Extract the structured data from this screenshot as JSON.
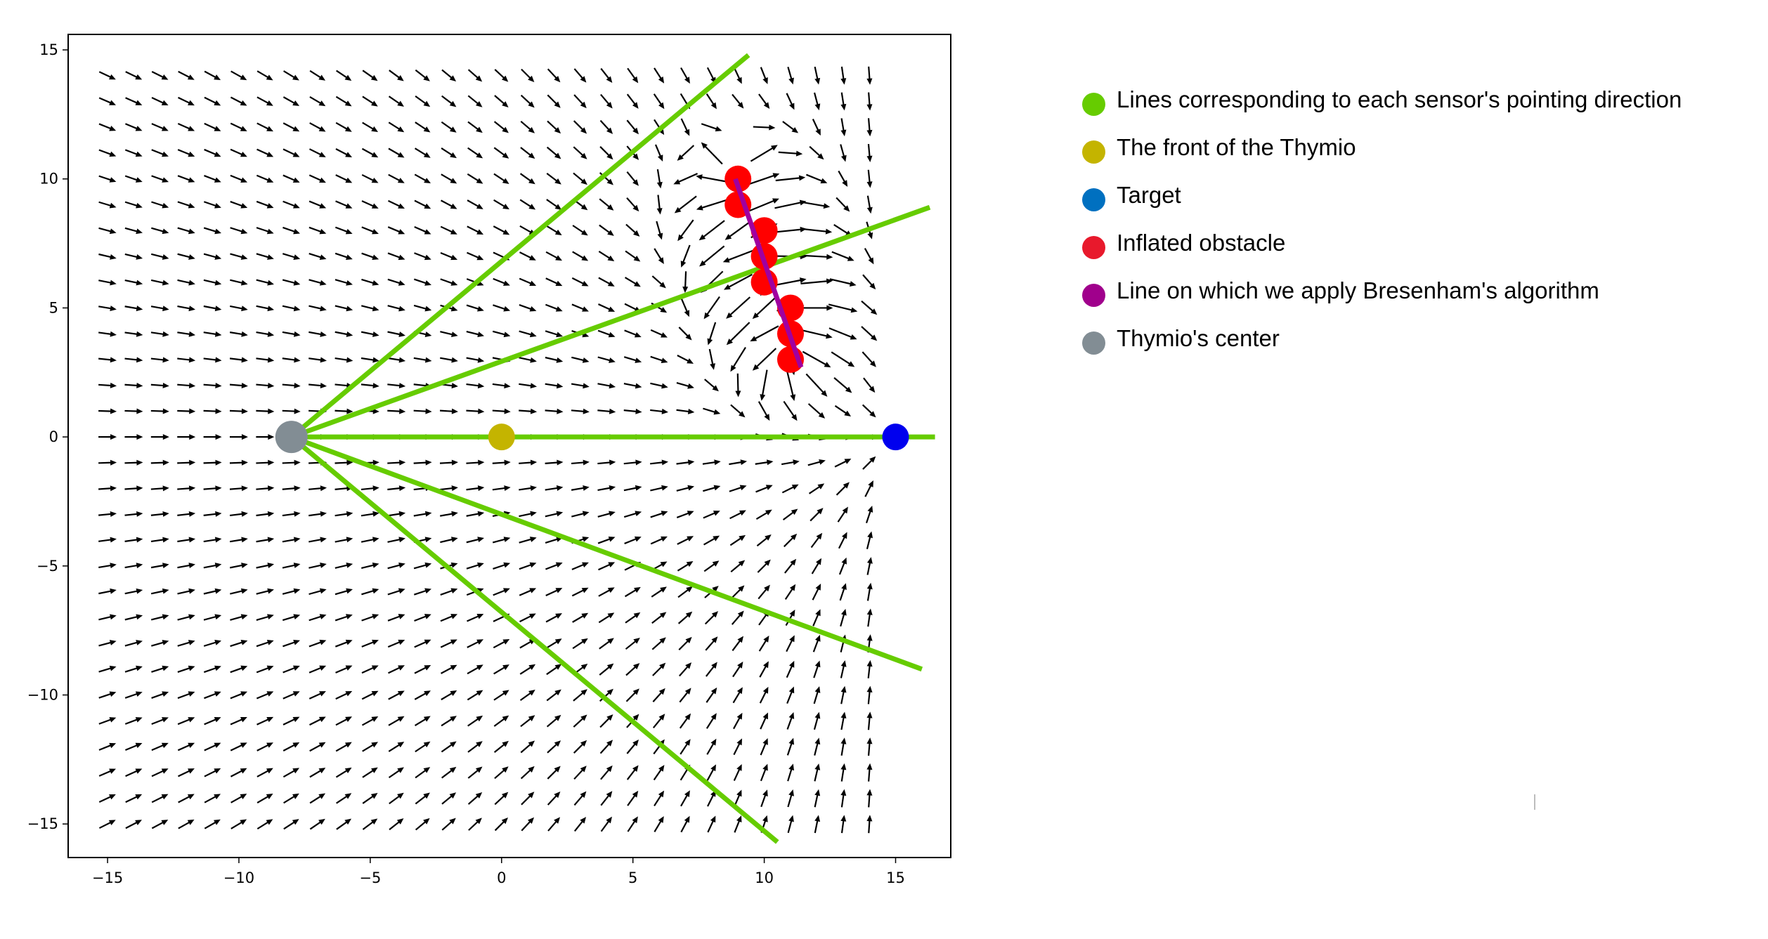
{
  "chart_data": {
    "type": "quiver",
    "xlim": [
      -16.5,
      17.1
    ],
    "ylim": [
      -16.3,
      15.6
    ],
    "x_ticks": [
      -15,
      -10,
      -5,
      0,
      5,
      10,
      15
    ],
    "y_ticks": [
      15,
      10,
      5,
      0,
      -5,
      -10,
      -15
    ],
    "x_tick_labels": [
      "−15",
      "−10",
      "−5",
      "0",
      "5",
      "10",
      "15"
    ],
    "y_tick_labels": [
      "15",
      "10",
      "5",
      "0",
      "−5",
      "−10",
      "−15"
    ],
    "grid": false,
    "legend_position": "right",
    "vector_field": {
      "x_range": [
        -15,
        14
      ],
      "y_range": [
        -15,
        14
      ],
      "step": 1
    },
    "thymio_center": {
      "x": -8,
      "y": 0
    },
    "thymio_front": {
      "x": 0,
      "y": 0
    },
    "target": {
      "x": 15,
      "y": 0
    },
    "sensor_lines": [
      {
        "x1": -8,
        "y1": 0,
        "x2": 9.4,
        "y2": 14.8
      },
      {
        "x1": -8,
        "y1": 0,
        "x2": 16.3,
        "y2": 8.9
      },
      {
        "x1": -8,
        "y1": 0,
        "x2": 16.5,
        "y2": 0
      },
      {
        "x1": -8,
        "y1": 0,
        "x2": 16.0,
        "y2": -9.0
      },
      {
        "x1": -8,
        "y1": 0,
        "x2": 10.5,
        "y2": -15.7
      }
    ],
    "bresenham_line": {
      "x1": 8.9,
      "y1": 10.0,
      "x2": 11.4,
      "y2": 2.7
    },
    "inflated_obstacle": [
      {
        "x": 9,
        "y": 10
      },
      {
        "x": 9,
        "y": 9
      },
      {
        "x": 10,
        "y": 8
      },
      {
        "x": 10,
        "y": 7
      },
      {
        "x": 10,
        "y": 6
      },
      {
        "x": 11,
        "y": 5
      },
      {
        "x": 11,
        "y": 4
      },
      {
        "x": 11,
        "y": 3
      }
    ],
    "colors": {
      "sensor_lines": "#66cc00",
      "thymio_front": "#c4b400",
      "target": "#0000ee",
      "obstacle": "#ff0000",
      "bresenham": "#a000a0",
      "thymio_center": "#828d94",
      "arrows": "#000000"
    }
  },
  "legend": [
    {
      "label": "Lines corresponding to each sensor's pointing direction",
      "color": "#66cc00"
    },
    {
      "label": "The front of the Thymio",
      "color": "#c4b400"
    },
    {
      "label": "Target",
      "color": "#0070c0"
    },
    {
      "label": "Inflated obstacle",
      "color": "#e8192c"
    },
    {
      "label": "Line on which we apply Bresenham's algorithm",
      "color": "#a0008c"
    },
    {
      "label": "Thymio's center",
      "color": "#828d94"
    }
  ]
}
